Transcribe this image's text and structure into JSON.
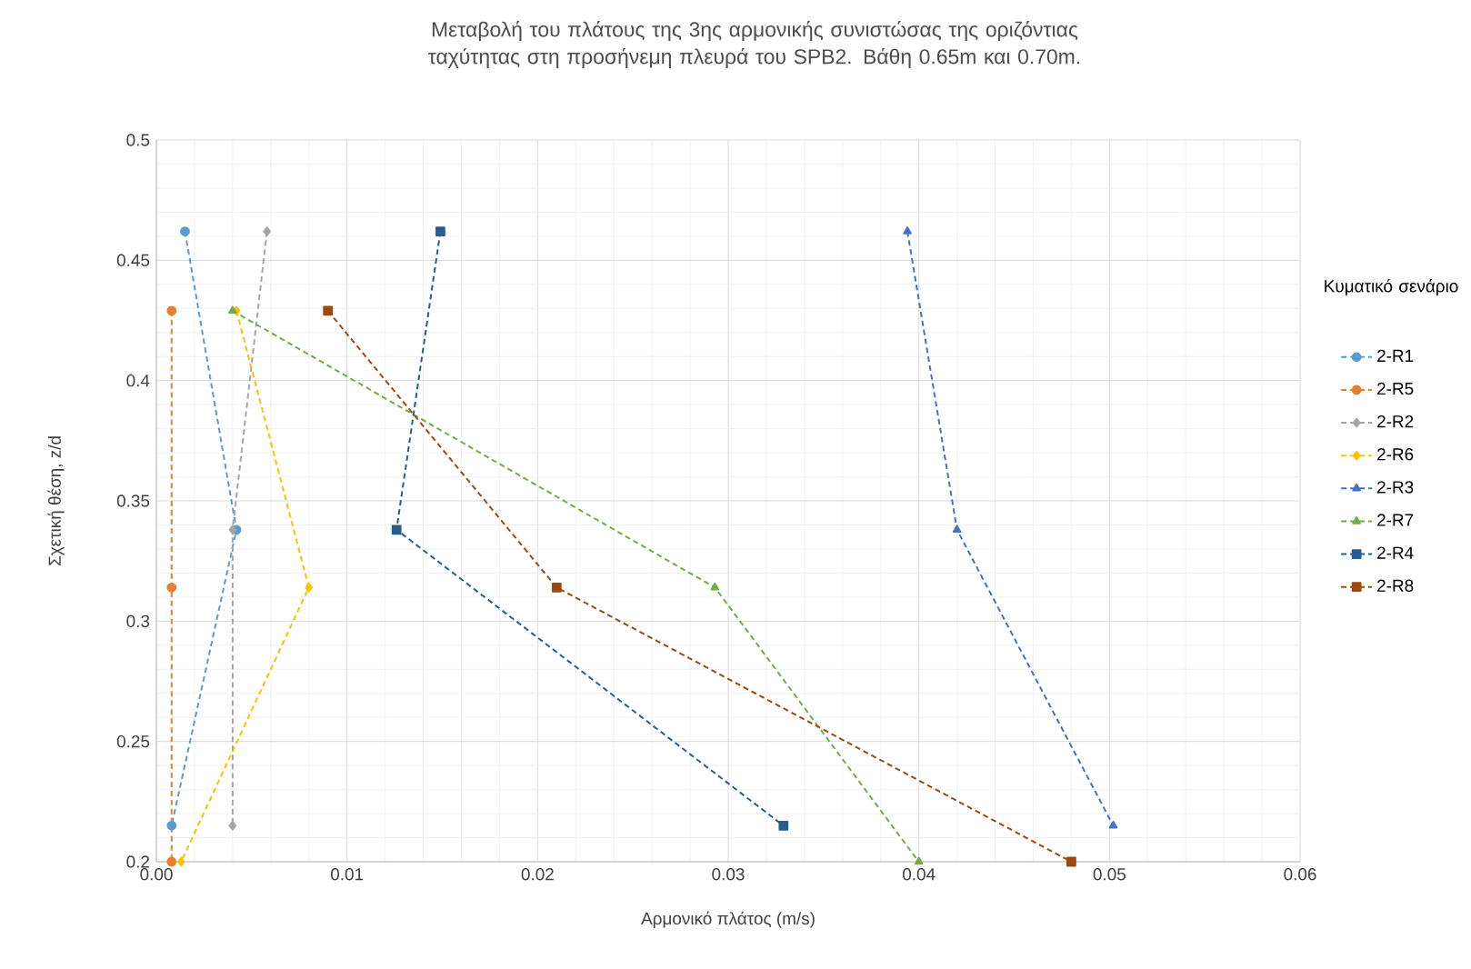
{
  "chart_data": {
    "type": "line",
    "title": "Μεταβολή του πλάτους της 3ης αρμονικής συνιστώσας της οριζόντιας ταχύτητας στη προσήνεμη πλευρά του SPB2. Βάθη 0.65m και 0.70m.",
    "xlabel": "Αρμονικό πλάτος (m/s)",
    "ylabel": "Σχετική θέση, z/d",
    "legend_title": "Κυματικό σενάριο",
    "xlim": [
      0,
      0.06
    ],
    "ylim": [
      0.2,
      0.5
    ],
    "xticks": [
      {
        "value": 0,
        "label": "0.00"
      },
      {
        "value": 0.01,
        "label": "0.01"
      },
      {
        "value": 0.02,
        "label": "0.02"
      },
      {
        "value": 0.03,
        "label": "0.03"
      },
      {
        "value": 0.04,
        "label": "0.04"
      },
      {
        "value": 0.05,
        "label": "0.05"
      },
      {
        "value": 0.06,
        "label": "0.06"
      }
    ],
    "yticks": [
      0.2,
      0.25,
      0.3,
      0.35,
      0.4,
      0.45,
      0.5
    ],
    "grid": true,
    "legend": "right",
    "line_style": "dashed",
    "series": [
      {
        "name": "2-R1",
        "color": "#5b9bd5",
        "marker": "circle",
        "x": [
          0.0015,
          0.0042,
          0.0008
        ],
        "values": [
          0.462,
          0.338,
          0.215
        ]
      },
      {
        "name": "2-R5",
        "color": "#ed7d31",
        "marker": "circle",
        "x": [
          0.0008,
          0.0008,
          0.0008
        ],
        "values": [
          0.429,
          0.314,
          0.2
        ]
      },
      {
        "name": "2-R2",
        "color": "#a5a5a5",
        "marker": "diamond",
        "x": [
          0.0058,
          0.004,
          0.004
        ],
        "values": [
          0.462,
          0.338,
          0.215
        ]
      },
      {
        "name": "2-R6",
        "color": "#ffc000",
        "marker": "diamond",
        "x": [
          0.0042,
          0.008,
          0.0013
        ],
        "values": [
          0.429,
          0.314,
          0.2
        ]
      },
      {
        "name": "2-R3",
        "color": "#4472c4",
        "marker": "triangle",
        "x": [
          0.0394,
          0.042,
          0.0502
        ],
        "values": [
          0.462,
          0.338,
          0.215
        ]
      },
      {
        "name": "2-R7",
        "color": "#70ad47",
        "marker": "triangle",
        "x": [
          0.004,
          0.0293,
          0.04
        ],
        "values": [
          0.429,
          0.314,
          0.2
        ]
      },
      {
        "name": "2-R4",
        "color": "#255e91",
        "marker": "square",
        "x": [
          0.0149,
          0.0126,
          0.0329
        ],
        "values": [
          0.462,
          0.338,
          0.215
        ]
      },
      {
        "name": "2-R8",
        "color": "#9e480e",
        "marker": "square",
        "x": [
          0.009,
          0.021,
          0.048
        ],
        "values": [
          0.429,
          0.314,
          0.2
        ]
      }
    ]
  }
}
